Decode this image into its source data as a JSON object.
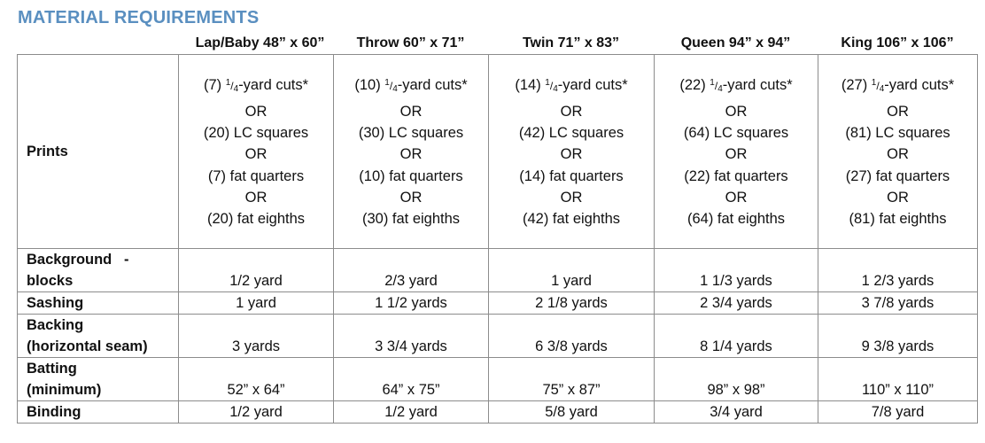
{
  "heading": "MATERIAL REQUIREMENTS",
  "columns": [
    "Lap/Baby 48” x 60”",
    "Throw 60” x 71”",
    "Twin 71” x 83”",
    "Queen 94” x 94”",
    "King 106” x 106”"
  ],
  "prints": {
    "label": "Prints",
    "or_text": "OR",
    "fraction": {
      "numerator": "1",
      "slash": "/",
      "denominator": "4"
    },
    "cells": [
      {
        "cut_count": "(7)",
        "cut_suffix": "-yard cuts*",
        "lc": "(20) LC squares",
        "fq": "(7) fat quarters",
        "fe": "(20) fat eighths"
      },
      {
        "cut_count": "(10)",
        "cut_suffix": "-yard cuts*",
        "lc": "(30) LC squares",
        "fq": "(10) fat quarters",
        "fe": "(30) fat eighths"
      },
      {
        "cut_count": "(14)",
        "cut_suffix": "-yard cuts*",
        "lc": "(42) LC squares",
        "fq": "(14) fat quarters",
        "fe": "(42) fat eighths"
      },
      {
        "cut_count": "(22)",
        "cut_suffix": "-yard cuts*",
        "lc": "(64) LC squares",
        "fq": "(22) fat quarters",
        "fe": "(64) fat eighths"
      },
      {
        "cut_count": "(27)",
        "cut_suffix": "-yard cuts*",
        "lc": "(81) LC squares",
        "fq": "(27) fat quarters",
        "fe": "(81) fat eighths"
      }
    ]
  },
  "rows": [
    {
      "label_line1": "Background   -",
      "label_line2": "blocks",
      "values": [
        "1/2 yard",
        "2/3 yard",
        "1 yard",
        "1 1/3 yards",
        "1 2/3 yards"
      ]
    },
    {
      "label_line1": "Sashing",
      "values": [
        "1 yard",
        "1 1/2 yards",
        "2 1/8 yards",
        "2 3/4 yards",
        "3 7/8 yards"
      ]
    },
    {
      "label_line1": "Backing",
      "label_line2": "(horizontal seam)",
      "values": [
        "3 yards",
        "3 3/4 yards",
        "6 3/8 yards",
        "8 1/4 yards",
        "9 3/8 yards"
      ]
    },
    {
      "label_line1": "Batting",
      "label_line2": "(minimum)",
      "values": [
        "52” x 64”",
        "64” x 75”",
        "75” x 87”",
        "98” x 98”",
        "110” x 110”"
      ]
    },
    {
      "label_line1": "Binding",
      "values": [
        "1/2 yard",
        "1/2 yard",
        "5/8 yard",
        "3/4 yard",
        "7/8 yard"
      ]
    }
  ]
}
